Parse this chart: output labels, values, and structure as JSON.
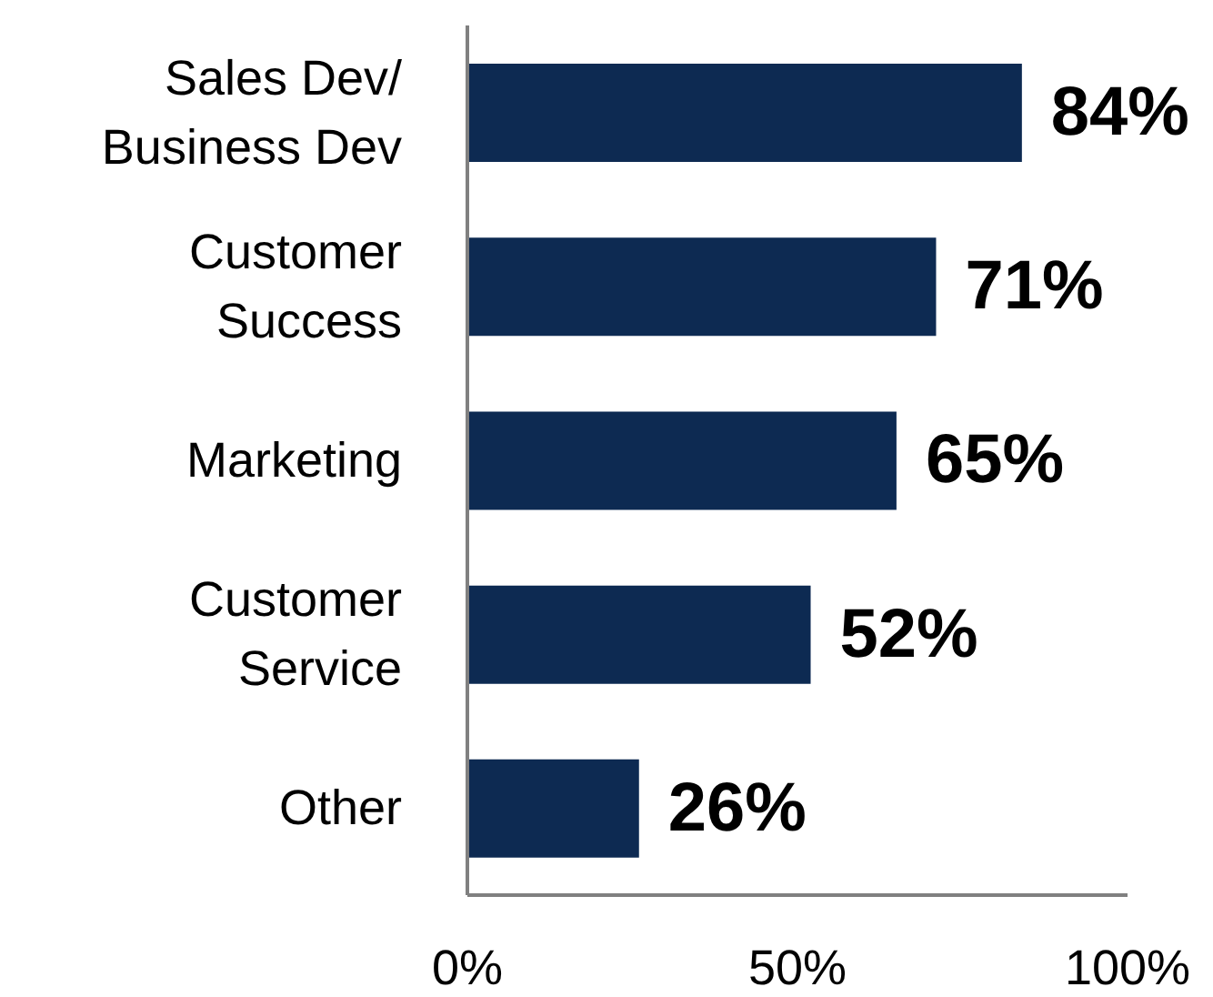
{
  "chart_data": {
    "type": "bar",
    "orientation": "horizontal",
    "categories": [
      "Sales Dev/ Business Dev",
      "Customer Success",
      "Marketing",
      "Customer Service",
      "Other"
    ],
    "values": [
      84,
      71,
      65,
      52,
      26
    ],
    "color": "#0d2a52",
    "value_labels": [
      "84%",
      "71%",
      "65%",
      "52%",
      "26%"
    ],
    "xlim": [
      0,
      100
    ],
    "xticks": [
      {
        "value": 0,
        "label": "0%"
      },
      {
        "value": 50,
        "label": "50%"
      },
      {
        "value": 100,
        "label": "100%"
      }
    ],
    "grid": false
  }
}
